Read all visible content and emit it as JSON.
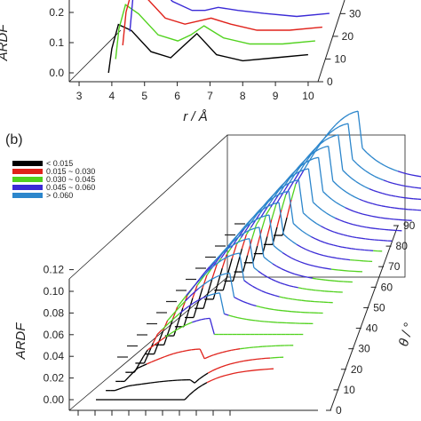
{
  "panels": [
    {
      "label": "",
      "type": "line",
      "style": "3d-waterfall",
      "ylabel": "ARDF",
      "xlabel": "r / Å",
      "xticks": [
        "3",
        "4",
        "5",
        "6",
        "7",
        "8",
        "9",
        "10"
      ],
      "yticks": [
        "0.0",
        "0.1",
        "0.2"
      ],
      "zticks": [
        "0",
        "10",
        "20",
        "30"
      ],
      "xlim": [
        2.7,
        10.3
      ],
      "ylim": [
        -0.05,
        0.26
      ],
      "zlim": [
        0,
        36
      ]
    },
    {
      "label": "(b)",
      "type": "line",
      "style": "3d-waterfall",
      "ylabel": "ARDF",
      "zlabel": "θ / °",
      "yticks": [
        "0.00",
        "0.02",
        "0.04",
        "0.06",
        "0.08",
        "0.10",
        "0.12"
      ],
      "zticks": [
        "0",
        "10",
        "20",
        "30",
        "40",
        "50",
        "60",
        "70",
        "80",
        "90"
      ],
      "ylim": [
        -0.005,
        0.125
      ],
      "zlim": [
        0,
        90
      ],
      "legend": {
        "placement": "top-left",
        "entries": [
          {
            "label": "< 0.015",
            "color": "#000000"
          },
          {
            "label": "0.015 ~ 0.030",
            "color": "#e0221b"
          },
          {
            "label": "0.030 ~ 0.045",
            "color": "#52d21f"
          },
          {
            "label": "0.045 ~ 0.060",
            "color": "#3b2bd6"
          },
          {
            "label": "> 0.060",
            "color": "#2c86cc"
          }
        ]
      }
    }
  ],
  "chart_data": [
    {
      "type": "line",
      "curves": [
        {
          "z": 0,
          "x": [
            3.9,
            4.0,
            4.2,
            4.6,
            5.2,
            5.8,
            6.2,
            6.6,
            7.2,
            8.0,
            9.0,
            10.0
          ],
          "y": [
            0.0,
            0.08,
            0.16,
            0.14,
            0.07,
            0.05,
            0.09,
            0.13,
            0.06,
            0.04,
            0.05,
            0.06
          ]
        },
        {
          "z": 10,
          "x": [
            3.9,
            4.0,
            4.2,
            4.6,
            5.2,
            5.8,
            6.2,
            6.6,
            7.2,
            8.0,
            9.0,
            10.0
          ],
          "y": [
            0.0,
            0.1,
            0.18,
            0.15,
            0.08,
            0.06,
            0.08,
            0.11,
            0.07,
            0.05,
            0.05,
            0.06
          ]
        },
        {
          "z": 20,
          "x": [
            3.9,
            4.0,
            4.2,
            4.6,
            5.2,
            5.8,
            6.2,
            6.6,
            7.2,
            8.0,
            9.0,
            10.0
          ],
          "y": [
            0.0,
            0.11,
            0.19,
            0.16,
            0.09,
            0.07,
            0.08,
            0.09,
            0.07,
            0.05,
            0.05,
            0.06
          ]
        },
        {
          "z": 30,
          "x": [
            3.9,
            4.0,
            4.2,
            4.6,
            5.2,
            5.8,
            6.2,
            6.6,
            7.2,
            8.0,
            9.0,
            10.0
          ],
          "y": [
            0.0,
            0.12,
            0.2,
            0.17,
            0.1,
            0.07,
            0.07,
            0.08,
            0.07,
            0.06,
            0.05,
            0.06
          ]
        }
      ]
    },
    {
      "type": "line",
      "theta": [
        0,
        5,
        10,
        15,
        20,
        25,
        30,
        35,
        40,
        45,
        50,
        55,
        60,
        65,
        70,
        75,
        80,
        85,
        90
      ],
      "peak_y": [
        0.0,
        0.01,
        0.03,
        0.05,
        0.065,
        0.075,
        0.085,
        0.09,
        0.092,
        0.095,
        0.098,
        0.1,
        0.102,
        0.104,
        0.106,
        0.108,
        0.11,
        0.112,
        0.115
      ],
      "tail_y": [
        0.03,
        0.032,
        0.034,
        0.035,
        0.036,
        0.037,
        0.038,
        0.039,
        0.04,
        0.041,
        0.042,
        0.043,
        0.044,
        0.045,
        0.046,
        0.047,
        0.048,
        0.049,
        0.05
      ]
    }
  ]
}
